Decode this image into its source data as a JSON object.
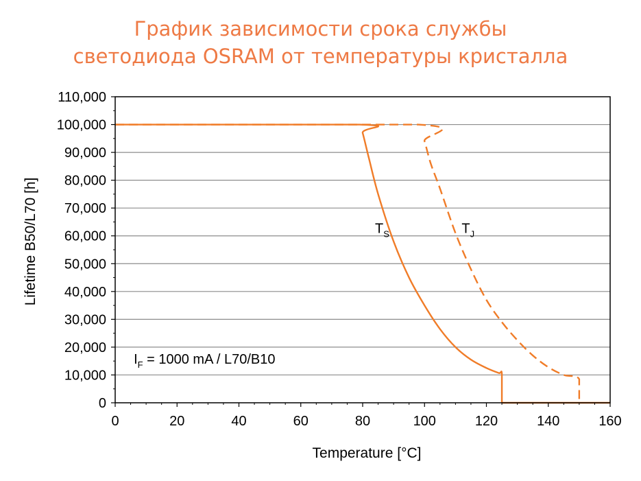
{
  "title_lines": [
    "График зависимости срока службы",
    "светодиода OSRAM от температуры кристалла"
  ],
  "colors": {
    "title": "#ee7a45",
    "series": "#f07c28",
    "grid": "#8c8c8c",
    "axis": "#000000"
  },
  "chart_data": {
    "type": "line",
    "xlabel": "Temperature  [°C]",
    "ylabel": "Lifetime B50/L70 [h]",
    "xlim": [
      0,
      160
    ],
    "ylim": [
      0,
      110000
    ],
    "x_ticks": [
      "0",
      "20",
      "40",
      "60",
      "80",
      "100",
      "120",
      "140",
      "160"
    ],
    "y_ticks": [
      "0",
      "10,000",
      "20,000",
      "30,000",
      "40,000",
      "50,000",
      "60,000",
      "70,000",
      "80,000",
      "90,000",
      "100,000",
      "110,000"
    ],
    "grid": "horizontal",
    "series": [
      {
        "name": "TS",
        "label_main": "T",
        "label_sub": "S",
        "label_at": [
          84,
          63000
        ],
        "style": "solid",
        "points": [
          [
            0,
            100000
          ],
          [
            79,
            100000
          ],
          [
            80,
            97000
          ],
          [
            82,
            88000
          ],
          [
            85,
            75000
          ],
          [
            90,
            58000
          ],
          [
            95,
            45000
          ],
          [
            100,
            35000
          ],
          [
            105,
            26500
          ],
          [
            110,
            20000
          ],
          [
            115,
            15500
          ],
          [
            120,
            12500
          ],
          [
            124,
            10700
          ],
          [
            125,
            10500
          ],
          [
            125,
            0
          ]
        ]
      },
      {
        "name": "TJ",
        "label_main": "T",
        "label_sub": "J",
        "label_at": [
          112,
          63000
        ],
        "style": "dashed",
        "points": [
          [
            0,
            100000
          ],
          [
            98,
            100000
          ],
          [
            100,
            94000
          ],
          [
            102,
            86000
          ],
          [
            105,
            77000
          ],
          [
            110,
            61000
          ],
          [
            115,
            48000
          ],
          [
            120,
            37000
          ],
          [
            125,
            29000
          ],
          [
            130,
            22500
          ],
          [
            135,
            17000
          ],
          [
            140,
            12800
          ],
          [
            145,
            10000
          ],
          [
            150,
            8500
          ],
          [
            150,
            0
          ]
        ]
      },
      {
        "name": "zero",
        "style": "solid",
        "points": [
          [
            125,
            0
          ],
          [
            160,
            0
          ]
        ]
      }
    ],
    "annotation": {
      "main": "I",
      "sub": "F",
      "rest": " = 1000 mA / L70/B10",
      "at": [
        6,
        14500
      ]
    }
  }
}
